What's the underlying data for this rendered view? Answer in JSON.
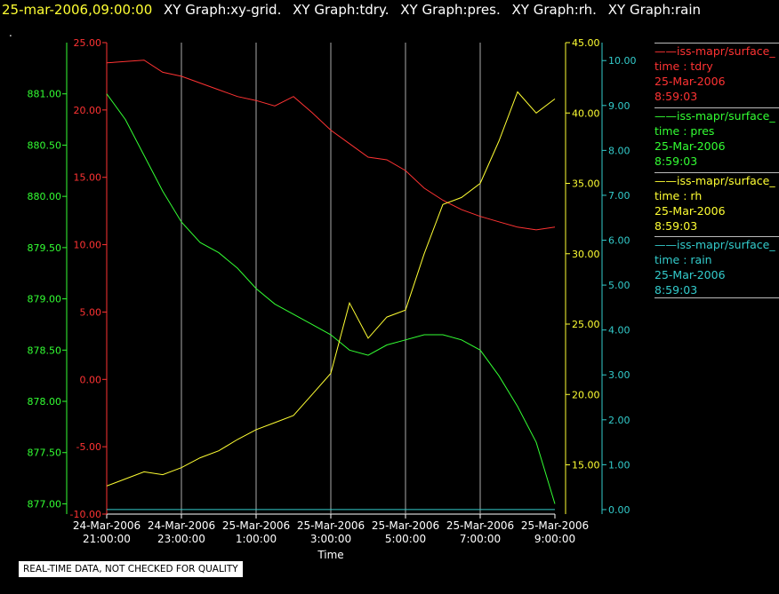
{
  "header": {
    "datetime": "25-mar-2006,09:00:00",
    "graphs": [
      "XY Graph:xy-grid.",
      "XY Graph:tdry.",
      "XY Graph:pres.",
      "XY Graph:rh.",
      "XY Graph:rain"
    ]
  },
  "dot": ".",
  "disclaimer": "REAL-TIME DATA, NOT CHECKED FOR QUALITY",
  "legend": [
    {
      "title": "iss-mapr/surface_",
      "line1": "time : tdry",
      "line2": "25-Mar-2006",
      "line3": "8:59:03",
      "color": "#ff3333"
    },
    {
      "title": "iss-mapr/surface_",
      "line1": "time : pres",
      "line2": "25-Mar-2006",
      "line3": "8:59:03",
      "color": "#33ff33"
    },
    {
      "title": "iss-mapr/surface_",
      "line1": "time : rh",
      "line2": "25-Mar-2006",
      "line3": "8:59:03",
      "color": "#ffff33"
    },
    {
      "title": "iss-mapr/surface_",
      "line1": "time : rain",
      "line2": "25-Mar-2006",
      "line3": "8:59:03",
      "color": "#33cccc"
    }
  ],
  "chart_data": {
    "type": "line",
    "xlabel": "Time",
    "x_ticks": [
      {
        "date": "24-Mar-2006",
        "time": "21:00:00"
      },
      {
        "date": "24-Mar-2006",
        "time": "23:00:00"
      },
      {
        "date": "25-Mar-2006",
        "time": "1:00:00"
      },
      {
        "date": "25-Mar-2006",
        "time": "3:00:00"
      },
      {
        "date": "25-Mar-2006",
        "time": "5:00:00"
      },
      {
        "date": "25-Mar-2006",
        "time": "7:00:00"
      },
      {
        "date": "25-Mar-2006",
        "time": "9:00:00"
      }
    ],
    "x_range_hours": [
      0,
      12
    ],
    "grid": "vertical",
    "axes": {
      "pres": {
        "min": 876.9,
        "max": 881.5,
        "ticks": [
          "877.00",
          "877.50",
          "878.00",
          "878.50",
          "879.00",
          "879.50",
          "880.00",
          "880.50",
          "881.00"
        ],
        "color": "#33ff33"
      },
      "tdry": {
        "min": -10,
        "max": 25,
        "ticks": [
          "-10.00",
          "-5.00",
          "0.00",
          "5.00",
          "10.00",
          "15.00",
          "20.00",
          "25.00"
        ],
        "color": "#ff3333"
      },
      "rh": {
        "min": 11.5,
        "max": 45,
        "ticks": [
          "15.00",
          "20.00",
          "25.00",
          "30.00",
          "35.00",
          "40.00",
          "45.00"
        ],
        "color": "#ffff33"
      },
      "rain": {
        "min": -0.1,
        "max": 10.4,
        "ticks": [
          "0.00",
          "1.00",
          "2.00",
          "3.00",
          "4.00",
          "5.00",
          "6.00",
          "7.00",
          "8.00",
          "9.00",
          "10.00"
        ],
        "color": "#33cccc"
      }
    },
    "series": [
      {
        "name": "tdry",
        "axis": "tdry",
        "color": "#ff3333",
        "x": [
          0,
          0.5,
          1,
          1.5,
          2,
          2.5,
          3,
          3.5,
          4,
          4.5,
          5,
          5.5,
          6,
          6.5,
          7,
          7.5,
          8,
          8.5,
          9,
          9.5,
          10,
          10.5,
          11,
          11.5,
          12
        ],
        "y": [
          23.5,
          23.6,
          23.7,
          22.8,
          22.5,
          22.0,
          21.5,
          21.0,
          20.7,
          20.3,
          21.0,
          19.8,
          18.5,
          17.5,
          16.5,
          16.3,
          15.5,
          14.2,
          13.3,
          12.6,
          12.1,
          11.7,
          11.3,
          11.1,
          11.3
        ]
      },
      {
        "name": "pres",
        "axis": "pres",
        "color": "#33ff33",
        "x": [
          0,
          0.5,
          1,
          1.5,
          2,
          2.5,
          3,
          3.5,
          4,
          4.5,
          5,
          5.5,
          6,
          6.5,
          7,
          7.5,
          8,
          8.5,
          9,
          9.5,
          10,
          10.5,
          11,
          11.5,
          12
        ],
        "y": [
          881.0,
          880.75,
          880.4,
          880.05,
          879.75,
          879.55,
          879.45,
          879.3,
          879.1,
          878.95,
          878.85,
          878.75,
          878.65,
          878.5,
          878.45,
          878.55,
          878.6,
          878.65,
          878.65,
          878.6,
          878.5,
          878.25,
          877.95,
          877.6,
          877.0
        ]
      },
      {
        "name": "rh",
        "axis": "rh",
        "color": "#ffff33",
        "x": [
          0,
          0.5,
          1,
          1.5,
          2,
          2.5,
          3,
          3.5,
          4,
          4.5,
          5,
          5.5,
          6,
          6.5,
          7,
          7.5,
          8,
          8.5,
          9,
          9.5,
          10,
          10.5,
          11,
          11.5,
          12
        ],
        "y": [
          13.5,
          14.0,
          14.5,
          14.3,
          14.8,
          15.5,
          16.0,
          16.8,
          17.5,
          18.0,
          18.5,
          20.0,
          21.5,
          26.5,
          24.0,
          25.5,
          26.0,
          30.0,
          33.5,
          34.0,
          35.0,
          38.0,
          41.5,
          40.0,
          41.0
        ]
      },
      {
        "name": "rain",
        "axis": "rain",
        "color": "#33cccc",
        "x": [
          0,
          12
        ],
        "y": [
          0.0,
          0.0
        ]
      }
    ]
  }
}
